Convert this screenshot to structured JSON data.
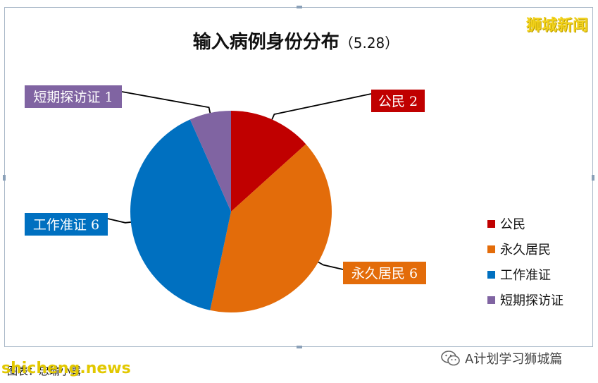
{
  "brand_label": "狮城新闻",
  "footer": {
    "credit": "图表：忠瑜小露",
    "watermark": "shicheng.news",
    "account": "A计划学习狮城篇",
    "account_icon": "wechat-icon"
  },
  "chart_data": {
    "type": "pie",
    "title": "输入病例身份分布",
    "subtitle": "（5.28）",
    "categories": [
      "公民",
      "永久居民",
      "工作准证",
      "短期探访证"
    ],
    "values": [
      2,
      6,
      6,
      1
    ],
    "colors": [
      "#c00000",
      "#e36c0a",
      "#0070c0",
      "#8064a2"
    ],
    "data_labels": [
      "公民 2",
      "永久居民 6",
      "工作准证 6",
      "短期探访证 1"
    ],
    "legend_position": "right",
    "legend": [
      "公民",
      "永久居民",
      "工作准证",
      "短期探访证"
    ]
  }
}
